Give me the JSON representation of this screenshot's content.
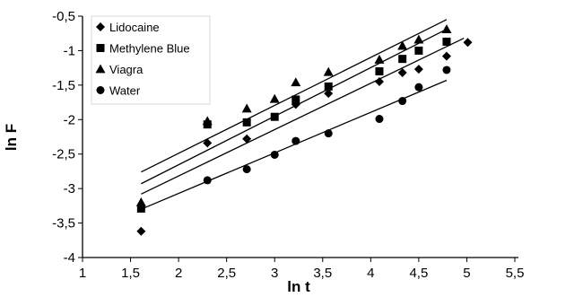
{
  "chart_data": {
    "type": "scatter",
    "xlabel": "ln t",
    "ylabel": "ln F",
    "xlim": [
      1,
      5.5
    ],
    "ylim": [
      -4,
      -0.5
    ],
    "x_ticks": [
      "1",
      "1,5",
      "2",
      "2,5",
      "3",
      "3,5",
      "4",
      "4,5",
      "5",
      "5,5"
    ],
    "y_ticks": [
      "-0,5",
      "-1",
      "-1,5",
      "-2",
      "-2,5",
      "-3",
      "-3,5",
      "-4"
    ],
    "legend_position": "top-left",
    "series": [
      {
        "name": "Lidocaine",
        "marker": "diamond",
        "points": [
          [
            1.61,
            -3.62
          ],
          [
            2.3,
            -2.34
          ],
          [
            2.71,
            -2.28
          ],
          [
            3.22,
            -1.78
          ],
          [
            3.56,
            -1.62
          ],
          [
            4.09,
            -1.45
          ],
          [
            4.33,
            -1.32
          ],
          [
            4.5,
            -1.27
          ],
          [
            4.79,
            -1.08
          ],
          [
            5.01,
            -0.88
          ]
        ],
        "fit_line": [
          [
            1.61,
            -3.08
          ],
          [
            4.97,
            -0.82
          ]
        ]
      },
      {
        "name": "Methylene Blue",
        "marker": "square",
        "points": [
          [
            1.61,
            -3.29
          ],
          [
            2.3,
            -2.07
          ],
          [
            2.71,
            -2.04
          ],
          [
            3.0,
            -1.96
          ],
          [
            3.22,
            -1.71
          ],
          [
            3.56,
            -1.52
          ],
          [
            4.09,
            -1.3
          ],
          [
            4.33,
            -1.12
          ],
          [
            4.5,
            -1.0
          ],
          [
            4.79,
            -0.87
          ]
        ],
        "fit_line": [
          [
            1.61,
            -2.93
          ],
          [
            4.79,
            -0.69
          ]
        ]
      },
      {
        "name": "Viagra",
        "marker": "triangle",
        "points": [
          [
            1.61,
            -3.2
          ],
          [
            2.3,
            -2.02
          ],
          [
            2.71,
            -1.84
          ],
          [
            3.0,
            -1.7
          ],
          [
            3.22,
            -1.46
          ],
          [
            3.56,
            -1.31
          ],
          [
            4.09,
            -1.13
          ],
          [
            4.33,
            -0.93
          ],
          [
            4.5,
            -0.84
          ],
          [
            4.79,
            -0.69
          ]
        ],
        "fit_line": [
          [
            1.61,
            -2.76
          ],
          [
            4.79,
            -0.55
          ]
        ]
      },
      {
        "name": "Water",
        "marker": "circle",
        "points": [
          [
            2.3,
            -2.88
          ],
          [
            2.71,
            -2.72
          ],
          [
            3.0,
            -2.51
          ],
          [
            3.22,
            -2.31
          ],
          [
            3.56,
            -2.2
          ],
          [
            4.09,
            -1.99
          ],
          [
            4.33,
            -1.73
          ],
          [
            4.5,
            -1.53
          ],
          [
            4.79,
            -1.28
          ]
        ],
        "fit_line": [
          [
            1.61,
            -3.3
          ],
          [
            4.79,
            -1.43
          ]
        ]
      }
    ]
  }
}
